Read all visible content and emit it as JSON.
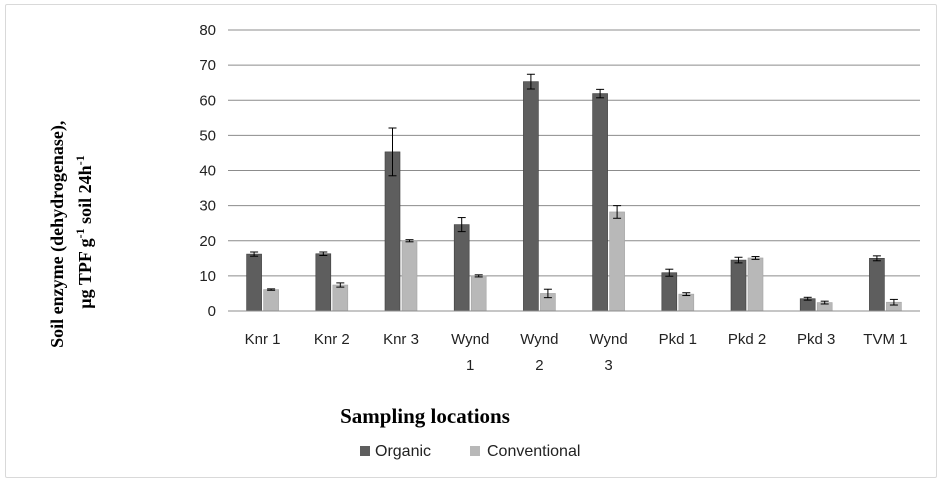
{
  "chart_data": {
    "type": "bar",
    "title": "",
    "ylabel_line1": "Soil enzyme (dehydrogenase),",
    "ylabel_line2_prefix": "µg TPF g",
    "ylabel_line2_sup1": "-1",
    "ylabel_line2_mid": " soil 24h",
    "ylabel_line2_sup2": "-1",
    "xlabel": "Sampling locations",
    "ylim": [
      0,
      80
    ],
    "yticks": [
      "0",
      "10",
      "20",
      "30",
      "40",
      "50",
      "60",
      "70",
      "80"
    ],
    "grid": true,
    "legend_position": "bottom",
    "categories": [
      [
        "Knr 1"
      ],
      [
        "Knr 2"
      ],
      [
        "Knr 3"
      ],
      [
        "Wynd",
        "1"
      ],
      [
        "Wynd",
        "2"
      ],
      [
        "Wynd",
        "3"
      ],
      [
        "Pkd 1"
      ],
      [
        "Pkd 2"
      ],
      [
        "Pkd 3"
      ],
      [
        "TVM 1"
      ]
    ],
    "series": [
      {
        "name": "Organic",
        "color": "#5e5e5e",
        "values": [
          16.2,
          16.3,
          45.3,
          24.6,
          65.3,
          61.9,
          10.9,
          14.5,
          3.5,
          15.0
        ],
        "errors": [
          0.6,
          0.5,
          6.8,
          2.0,
          2.1,
          1.2,
          1.0,
          0.8,
          0.4,
          0.7
        ]
      },
      {
        "name": "Conventional",
        "color": "#b8b8b8",
        "values": [
          6.1,
          7.4,
          20.0,
          10.0,
          5.0,
          28.2,
          4.8,
          15.1,
          2.4,
          2.5
        ],
        "errors": [
          0.2,
          0.6,
          0.3,
          0.3,
          1.2,
          1.8,
          0.4,
          0.4,
          0.4,
          0.8
        ]
      }
    ]
  }
}
